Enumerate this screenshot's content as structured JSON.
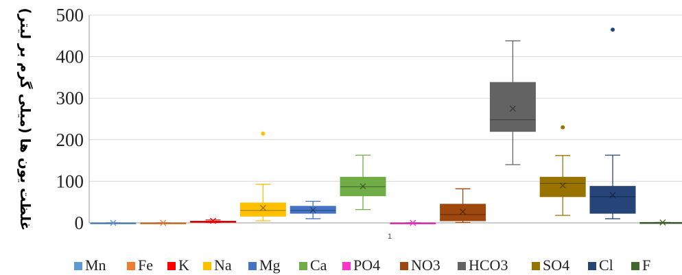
{
  "chart_data": {
    "type": "box",
    "title": "",
    "xlabel": "",
    "ylabel": "غلظت یون ها (میلی گرم بر لیتر)",
    "category_label": "1",
    "ylim": [
      0,
      500
    ],
    "yticks": [
      "0",
      "100",
      "200",
      "300",
      "400",
      "500"
    ],
    "grid": true,
    "legend_position": "bottom",
    "series": [
      {
        "name": "Mn",
        "color": "#5b9bd5",
        "min": 0,
        "q1": 0,
        "median": 0,
        "q3": 0,
        "max": 0,
        "mean": 0,
        "outliers": []
      },
      {
        "name": "Fe",
        "color": "#ed7d31",
        "min": 0,
        "q1": 0,
        "median": 0,
        "q3": 0,
        "max": 0,
        "mean": 0,
        "outliers": []
      },
      {
        "name": "K",
        "color": "#ff0000",
        "min": 1,
        "q1": 2,
        "median": 3,
        "q3": 4,
        "max": 7,
        "mean": 5,
        "outliers": []
      },
      {
        "name": "Na",
        "color": "#ffc000",
        "min": 5,
        "q1": 16,
        "median": 30,
        "q3": 48,
        "max": 93,
        "mean": 36,
        "outliers": [
          215
        ]
      },
      {
        "name": "Mg",
        "color": "#4472c4",
        "min": 10,
        "q1": 23,
        "median": 30,
        "q3": 40,
        "max": 52,
        "mean": 31,
        "outliers": []
      },
      {
        "name": "Ca",
        "color": "#70ad47",
        "min": 32,
        "q1": 65,
        "median": 87,
        "q3": 110,
        "max": 163,
        "mean": 88,
        "outliers": []
      },
      {
        "name": "PO4",
        "color": "#ff33cc",
        "min": 0,
        "q1": 0,
        "median": 0,
        "q3": 0,
        "max": 0,
        "mean": 0,
        "outliers": []
      },
      {
        "name": "NO3",
        "color": "#9e480e",
        "min": 1,
        "q1": 5,
        "median": 20,
        "q3": 45,
        "max": 82,
        "mean": 27,
        "outliers": []
      },
      {
        "name": "HCO3",
        "color": "#636363",
        "min": 140,
        "q1": 220,
        "median": 248,
        "q3": 338,
        "max": 438,
        "mean": 275,
        "outliers": []
      },
      {
        "name": "SO4",
        "color": "#997300",
        "min": 18,
        "q1": 63,
        "median": 95,
        "q3": 110,
        "max": 162,
        "mean": 90,
        "outliers": [
          230
        ]
      },
      {
        "name": "Cl",
        "color": "#264478",
        "min": 10,
        "q1": 23,
        "median": 63,
        "q3": 88,
        "max": 163,
        "mean": 67,
        "outliers": [
          465
        ]
      },
      {
        "name": "F",
        "color": "#43682b",
        "min": 0,
        "q1": 0,
        "median": 0,
        "q3": 1,
        "max": 1,
        "mean": 1,
        "outliers": []
      }
    ]
  }
}
